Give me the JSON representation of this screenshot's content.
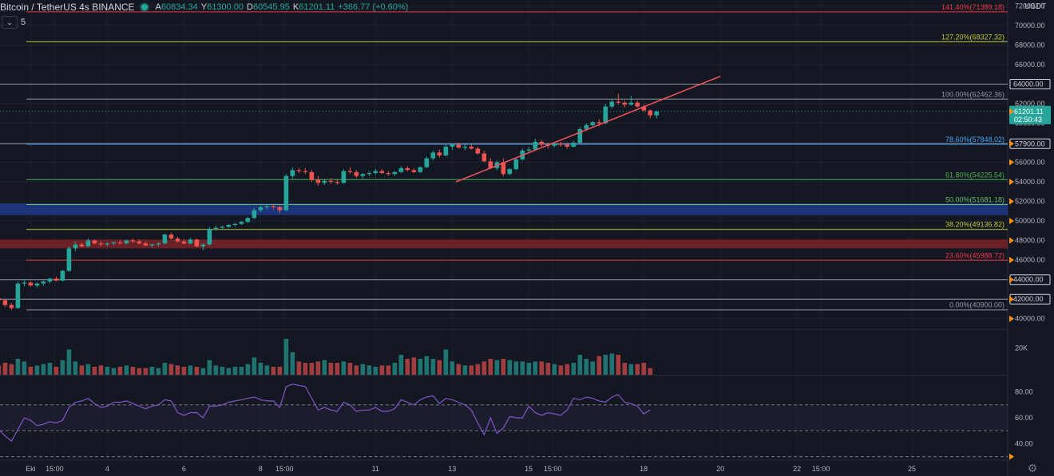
{
  "header": {
    "symbol": "Bitcoin / TetherUS",
    "interval": "4s",
    "exchange": "BINANCE",
    "ohlc": {
      "o_label": "A",
      "o": "60834.34",
      "h_label": "Y",
      "h": "61300.00",
      "l_label": "D",
      "l": "60545.95",
      "c_label": "K",
      "c": "61201.11",
      "change": "+366.77 (+0.60%)"
    }
  },
  "indicator_toggle": {
    "icon": "chevron-down-icon",
    "count": "5"
  },
  "currency_label": "USDT",
  "colors": {
    "background": "#131722",
    "up": "#26a69a",
    "down": "#ef5350",
    "grid": "#1e222d",
    "text": "#b2b5be",
    "trend": "#f7525f",
    "rsi": "#7e57c2"
  },
  "chart_data": [
    {
      "type": "candlestick",
      "title": "",
      "y_ticks": [
        "72000.00",
        "70000.00",
        "68000.00",
        "66000.00",
        "64000.00",
        "62000.00",
        "60000.00",
        "58000.00",
        "56000.00",
        "54000.00",
        "52000.00",
        "50000.00",
        "48000.00",
        "46000.00",
        "44000.00",
        "42000.00",
        "40000.00"
      ],
      "y_ticks_boxed": [
        "64000.00",
        "44000.00",
        "42000.00"
      ],
      "ylim": [
        39000,
        72600
      ],
      "x_ticks": [
        {
          "label": "Eki",
          "day": 1.0
        },
        {
          "label": "15:00",
          "day": 1.625
        },
        {
          "label": "4",
          "day": 3.0
        },
        {
          "label": "6",
          "day": 5.0
        },
        {
          "label": "8",
          "day": 7.0
        },
        {
          "label": "15:00",
          "day": 7.625
        },
        {
          "label": "11",
          "day": 10.0
        },
        {
          "label": "13",
          "day": 12.0
        },
        {
          "label": "15",
          "day": 14.0
        },
        {
          "label": "15:00",
          "day": 14.625
        },
        {
          "label": "18",
          "day": 17.0
        },
        {
          "label": "20",
          "day": 19.0
        },
        {
          "label": "22",
          "day": 21.0
        },
        {
          "label": "15:00",
          "day": 21.625
        },
        {
          "label": "25",
          "day": 24.0
        }
      ],
      "xlim": [
        0.2,
        26.5
      ],
      "last_price": "61201.11",
      "countdown": "02:50:43",
      "price_marker": "57900.00",
      "fib_levels": [
        {
          "label": "141.40%(71389.18)",
          "price": 71389.18,
          "color": "#f23645"
        },
        {
          "label": "127.20%(68327.32)",
          "price": 68327.32,
          "color": "#c0ca33"
        },
        {
          "label": "100.00%(62462.36)",
          "price": 62462.36,
          "color": "#9598a1"
        },
        {
          "label": "78.60%(57848.02)",
          "price": 57848.02,
          "color": "#42a5f5"
        },
        {
          "label": "61.80%(54225.54)",
          "price": 54225.54,
          "color": "#4caf50"
        },
        {
          "label": "50.00%(51681.18)",
          "price": 51681.18,
          "color": "#66bb6a"
        },
        {
          "label": "38.20%(49136.82)",
          "price": 49136.82,
          "color": "#c0ca33"
        },
        {
          "label": "23.60%(45988.72)",
          "price": 45988.72,
          "color": "#f23645"
        },
        {
          "label": "0.00%(40900.00)",
          "price": 40900.0,
          "color": "#9598a1"
        }
      ],
      "horizontal_lines": [
        64000,
        57900,
        44000,
        42000
      ],
      "zones": [
        {
          "from": 50600,
          "to": 51800,
          "color": "#1e3a8a"
        },
        {
          "from": 47200,
          "to": 48100,
          "color": "#7b2226"
        }
      ],
      "trendline": {
        "from": {
          "day": 12.1,
          "price": 54000
        },
        "to": {
          "day": 19.0,
          "price": 64800
        },
        "color": "#f7525f"
      },
      "start_day": 0.0,
      "candle_step_days": 0.1667,
      "candles": [
        [
          42200,
          42300,
          41900,
          42100
        ],
        [
          42100,
          42200,
          41800,
          41900
        ],
        [
          41900,
          42000,
          41200,
          41400
        ],
        [
          41400,
          41600,
          40900,
          41100
        ],
        [
          41100,
          43800,
          41000,
          43600
        ],
        [
          43600,
          44000,
          43300,
          43700
        ],
        [
          43700,
          43800,
          43300,
          43400
        ],
        [
          43400,
          43700,
          43200,
          43600
        ],
        [
          43600,
          43900,
          43400,
          43800
        ],
        [
          43800,
          44200,
          43600,
          44100
        ],
        [
          44100,
          44300,
          43800,
          43900
        ],
        [
          43900,
          45000,
          43800,
          44900
        ],
        [
          44900,
          47400,
          44800,
          47200
        ],
        [
          47200,
          47900,
          46900,
          47600
        ],
        [
          47600,
          47800,
          47300,
          47400
        ],
        [
          47400,
          48200,
          47300,
          48000
        ],
        [
          48000,
          48100,
          47600,
          47700
        ],
        [
          47700,
          47900,
          47400,
          47600
        ],
        [
          47600,
          47800,
          47400,
          47700
        ],
        [
          47700,
          47900,
          47500,
          47800
        ],
        [
          47800,
          48000,
          47600,
          47700
        ],
        [
          47700,
          48100,
          47600,
          48000
        ],
        [
          48000,
          48200,
          47800,
          47900
        ],
        [
          47900,
          48100,
          47600,
          47700
        ],
        [
          47700,
          47900,
          47400,
          47500
        ],
        [
          47500,
          47700,
          47300,
          47600
        ],
        [
          47600,
          47800,
          47400,
          47700
        ],
        [
          47700,
          48700,
          47600,
          48600
        ],
        [
          48600,
          48800,
          48100,
          48200
        ],
        [
          48200,
          48400,
          47800,
          47900
        ],
        [
          47900,
          48100,
          47600,
          47700
        ],
        [
          47700,
          48300,
          47600,
          48100
        ],
        [
          48100,
          48200,
          47300,
          47400
        ],
        [
          47400,
          47700,
          47000,
          47600
        ],
        [
          47600,
          49400,
          47500,
          49200
        ],
        [
          49200,
          49500,
          49000,
          49300
        ],
        [
          49300,
          49500,
          49100,
          49400
        ],
        [
          49400,
          49700,
          49300,
          49600
        ],
        [
          49600,
          49800,
          49400,
          49700
        ],
        [
          49700,
          50000,
          49600,
          49900
        ],
        [
          49900,
          50400,
          49800,
          50300
        ],
        [
          50300,
          51300,
          50200,
          51100
        ],
        [
          51100,
          51600,
          50900,
          51400
        ],
        [
          51400,
          51700,
          51200,
          51500
        ],
        [
          51500,
          51700,
          51200,
          51400
        ],
        [
          51400,
          51600,
          50800,
          51100
        ],
        [
          51100,
          54800,
          51000,
          54600
        ],
        [
          54600,
          55500,
          54300,
          55200
        ],
        [
          55200,
          55400,
          54900,
          55100
        ],
        [
          55100,
          55400,
          54800,
          55000
        ],
        [
          55000,
          55200,
          54000,
          54200
        ],
        [
          54200,
          54600,
          53600,
          53900
        ],
        [
          53900,
          54300,
          53700,
          54100
        ],
        [
          54100,
          54400,
          53800,
          54000
        ],
        [
          54000,
          54300,
          53700,
          53900
        ],
        [
          53900,
          55300,
          53800,
          55100
        ],
        [
          55100,
          55500,
          54800,
          55000
        ],
        [
          55000,
          55200,
          54400,
          54600
        ],
        [
          54600,
          54900,
          54300,
          54800
        ],
        [
          54800,
          55100,
          54600,
          54900
        ],
        [
          54900,
          55300,
          54700,
          55100
        ],
        [
          55100,
          55300,
          54800,
          54900
        ],
        [
          54900,
          55100,
          54600,
          54800
        ],
        [
          54800,
          55100,
          54600,
          55000
        ],
        [
          55000,
          55600,
          54900,
          55400
        ],
        [
          55400,
          55600,
          55100,
          55200
        ],
        [
          55200,
          55400,
          54900,
          55000
        ],
        [
          55000,
          55600,
          54900,
          55500
        ],
        [
          55500,
          56600,
          55400,
          56400
        ],
        [
          56400,
          57200,
          56200,
          57000
        ],
        [
          57000,
          57300,
          56500,
          56700
        ],
        [
          56700,
          57800,
          56600,
          57600
        ],
        [
          57600,
          57900,
          57300,
          57800
        ],
        [
          57800,
          58000,
          57400,
          57500
        ],
        [
          57500,
          57800,
          57200,
          57600
        ],
        [
          57600,
          57800,
          57300,
          57400
        ],
        [
          57400,
          57600,
          56800,
          56900
        ],
        [
          56900,
          57200,
          56000,
          56100
        ],
        [
          56100,
          56400,
          55300,
          55400
        ],
        [
          55400,
          56200,
          55200,
          56000
        ],
        [
          56000,
          56400,
          54600,
          54800
        ],
        [
          54800,
          55400,
          54700,
          55300
        ],
        [
          55300,
          56400,
          55200,
          56300
        ],
        [
          56300,
          57400,
          56200,
          57200
        ],
        [
          57200,
          57600,
          56900,
          57300
        ],
        [
          57300,
          58400,
          57200,
          58100
        ],
        [
          58100,
          58300,
          57600,
          57800
        ],
        [
          57800,
          58000,
          57400,
          57700
        ],
        [
          57700,
          58000,
          57500,
          57900
        ],
        [
          57900,
          58100,
          57600,
          57800
        ],
        [
          57800,
          58000,
          57400,
          57600
        ],
        [
          57600,
          58200,
          57500,
          58000
        ],
        [
          58000,
          59600,
          57900,
          59400
        ],
        [
          59400,
          60000,
          59200,
          59800
        ],
        [
          59800,
          60200,
          59600,
          60100
        ],
        [
          60100,
          60400,
          59700,
          60000
        ],
        [
          60000,
          62000,
          59900,
          61700
        ],
        [
          61700,
          62400,
          61500,
          62200
        ],
        [
          62200,
          63000,
          61900,
          62100
        ],
        [
          62100,
          62300,
          61600,
          61900
        ],
        [
          61900,
          62800,
          61800,
          62100
        ],
        [
          62100,
          62300,
          61600,
          61700
        ],
        [
          61700,
          61900,
          61200,
          61300
        ],
        [
          61300,
          61400,
          60500,
          60800
        ],
        [
          60800,
          61300,
          60500,
          61200
        ]
      ],
      "volume": {
        "tick_label": "20K",
        "ylim": [
          0,
          30000
        ],
        "values": [
          6000,
          7000,
          9000,
          8000,
          12000,
          10000,
          6000,
          7000,
          8000,
          9000,
          6000,
          11000,
          19000,
          10000,
          7000,
          8000,
          6000,
          7000,
          6000,
          5000,
          6000,
          7000,
          6000,
          5000,
          5000,
          6000,
          5000,
          9000,
          8000,
          7000,
          6000,
          7000,
          6000,
          5000,
          11000,
          7000,
          6000,
          5000,
          6000,
          6000,
          8000,
          13000,
          9000,
          7000,
          6000,
          6000,
          27000,
          17000,
          10000,
          9000,
          9000,
          10000,
          11000,
          9000,
          9000,
          10000,
          9000,
          7000,
          8000,
          7000,
          6000,
          7000,
          7000,
          9000,
          15000,
          12000,
          13000,
          12000,
          14000,
          12000,
          11000,
          19000,
          10000,
          8000,
          7000,
          7000,
          8000,
          10000,
          12000,
          11000,
          12000,
          11000,
          10000,
          10000,
          9000,
          10000,
          10000,
          9000,
          8000,
          7000,
          8000,
          9000,
          15000,
          12000,
          10000,
          14000,
          15000,
          16000,
          15000,
          9000,
          8000,
          8000,
          9000,
          5000
        ]
      },
      "rsi": {
        "y_ticks": [
          "80.00",
          "60.00",
          "40.00"
        ],
        "ylim": [
          28,
          92
        ],
        "upper_band": 70,
        "lower_band": 50,
        "bottom_line": 30,
        "values": [
          55,
          51,
          46,
          42,
          51,
          60,
          58,
          54,
          55,
          57,
          56,
          58,
          68,
          72,
          73,
          75,
          71,
          68,
          69,
          72,
          72,
          73,
          71,
          69,
          67,
          69,
          70,
          74,
          73,
          64,
          62,
          64,
          64,
          60,
          69,
          69,
          70,
          72,
          73,
          74,
          75,
          76,
          74,
          73,
          73,
          68,
          84,
          86,
          85,
          84,
          75,
          66,
          68,
          66,
          65,
          72,
          70,
          65,
          66,
          66,
          68,
          65,
          65,
          67,
          74,
          72,
          70,
          74,
          76,
          77,
          71,
          75,
          74,
          72,
          70,
          66,
          56,
          47,
          60,
          48,
          52,
          61,
          60,
          60,
          69,
          64,
          62,
          64,
          63,
          62,
          66,
          75,
          74,
          76,
          75,
          73,
          72,
          76,
          78,
          72,
          71,
          69,
          63,
          66
        ]
      }
    }
  ]
}
